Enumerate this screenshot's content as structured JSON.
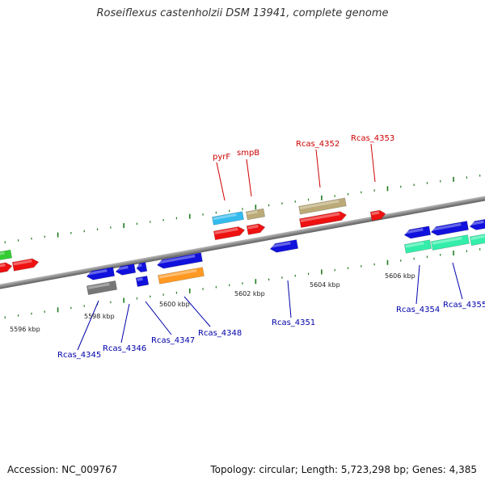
{
  "title": "Roseiflexus castenholzii DSM 13941, complete genome",
  "footer": {
    "accession": "Accession: NC_009767",
    "topology": "Topology: circular; Length: 5,723,298 bp; Genes: 4,385"
  },
  "colors": {
    "forward_label": "#cc0000",
    "reverse_label": "#0000aa",
    "backbone": "#888888",
    "tick": "#1f7a1f"
  },
  "axis": {
    "tick_labels": [
      "5596 kbp",
      "5598 kbp",
      "5600 kbp",
      "5602 kbp",
      "5604 kbp",
      "5606 kbp"
    ]
  },
  "genes": {
    "forward_labels": [
      "pyrF",
      "smpB",
      "Rcas_4352",
      "Rcas_4353"
    ],
    "reverse_labels": [
      "Rcas_4345",
      "Rcas_4346",
      "Rcas_4347",
      "Rcas_4348",
      "Rcas_4351",
      "Rcas_4354",
      "Rcas_4355"
    ]
  }
}
